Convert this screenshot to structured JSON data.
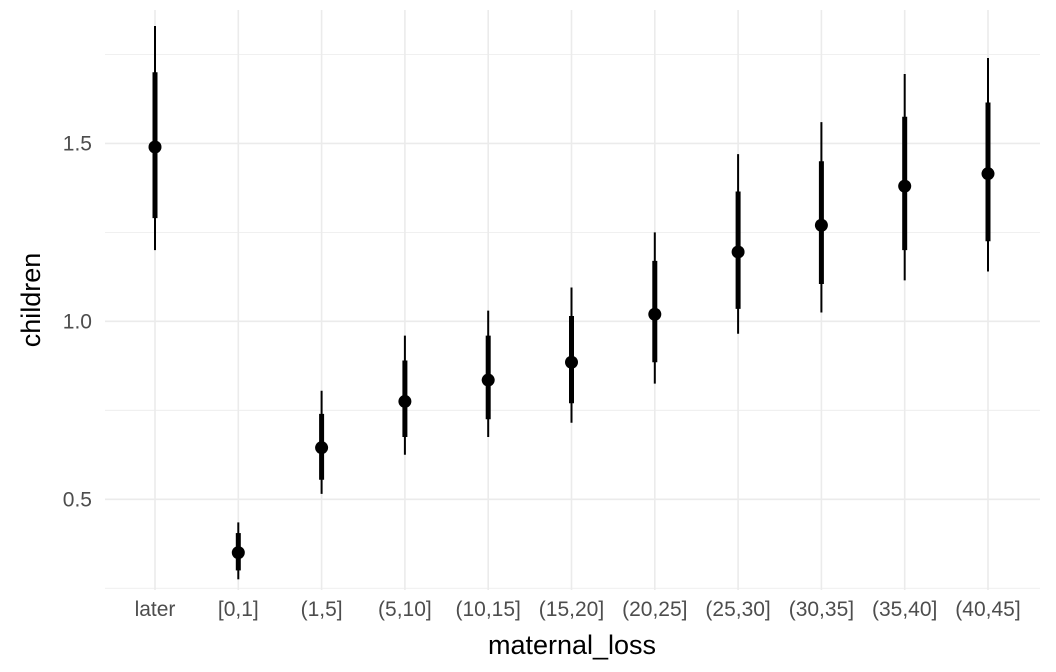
{
  "chart_data": {
    "type": "pointrange",
    "xlabel": "maternal_loss",
    "ylabel": "children",
    "categories": [
      "later",
      "[0,1]",
      "(1,5]",
      "(5,10]",
      "(10,15]",
      "(15,20]",
      "(20,25]",
      "(25,30]",
      "(30,35]",
      "(35,40]",
      "(40,45]"
    ],
    "estimate": [
      1.49,
      0.35,
      0.645,
      0.775,
      0.835,
      0.885,
      1.02,
      1.195,
      1.27,
      1.38,
      1.415
    ],
    "inner_low": [
      1.29,
      0.3,
      0.555,
      0.675,
      0.725,
      0.77,
      0.885,
      1.035,
      1.105,
      1.2,
      1.225
    ],
    "inner_high": [
      1.7,
      0.405,
      0.74,
      0.89,
      0.96,
      1.015,
      1.17,
      1.365,
      1.45,
      1.575,
      1.615
    ],
    "outer_low": [
      1.2,
      0.275,
      0.515,
      0.625,
      0.675,
      0.715,
      0.825,
      0.965,
      1.025,
      1.115,
      1.14
    ],
    "outer_high": [
      1.83,
      0.435,
      0.805,
      0.96,
      1.03,
      1.095,
      1.25,
      1.47,
      1.56,
      1.695,
      1.74
    ],
    "yticks": [
      0.5,
      1.0,
      1.5
    ],
    "ytick_labels": [
      "0.5",
      "1.0",
      "1.5"
    ],
    "ylim": [
      0.245,
      1.875
    ],
    "grid": true,
    "colors": {
      "point": "#000000",
      "grid": "#ebebeb",
      "tick_label": "#4d4d4d",
      "background": "#ffffff"
    }
  }
}
